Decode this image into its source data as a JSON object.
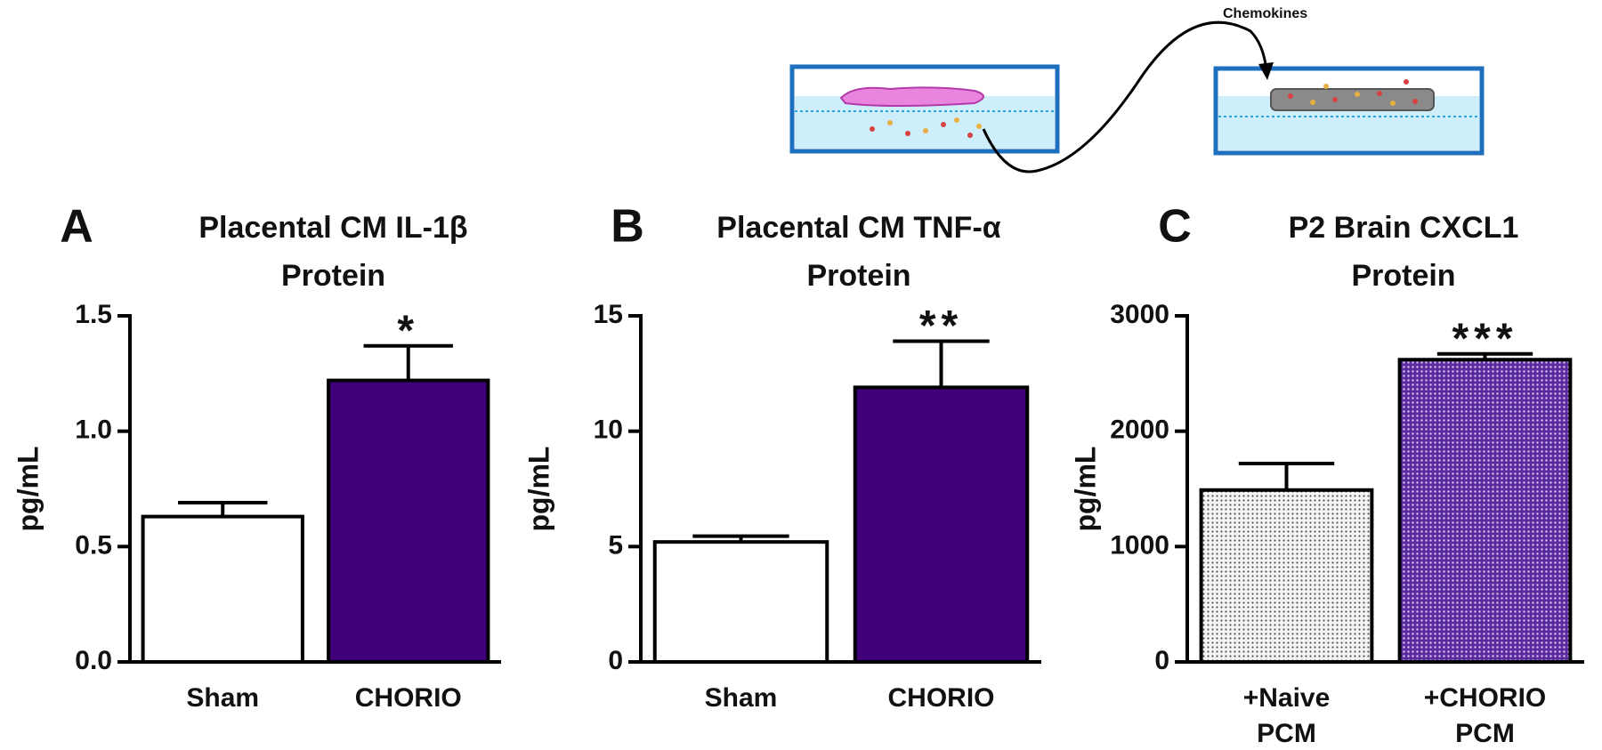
{
  "diagram": {
    "label": "Chemokines"
  },
  "chart_data": [
    {
      "type": "bar",
      "panel": "A",
      "title": [
        "Placental CM IL-1β",
        "Protein"
      ],
      "ylabel": "pg/mL",
      "categories": [
        [
          "Sham"
        ],
        [
          "CHORIO"
        ]
      ],
      "values": [
        0.63,
        1.22
      ],
      "errors": [
        0.06,
        0.15
      ],
      "colors": [
        "#ffffff",
        "#3f0079"
      ],
      "annotations": [
        null,
        "*"
      ],
      "ylim": [
        0,
        1.5
      ],
      "yticks": [
        {
          "value": 0,
          "label": "0.0"
        },
        0.5,
        {
          "value": 1,
          "label": "1.0"
        },
        1.5
      ]
    },
    {
      "type": "bar",
      "panel": "B",
      "title": [
        "Placental CM TNF-α",
        "Protein"
      ],
      "ylabel": "pg/mL",
      "categories": [
        [
          "Sham"
        ],
        [
          "CHORIO"
        ]
      ],
      "values": [
        5.2,
        11.9
      ],
      "errors": [
        0.25,
        2.0
      ],
      "colors": [
        "#ffffff",
        "#3f0079"
      ],
      "annotations": [
        null,
        "**"
      ],
      "ylim": [
        0,
        15
      ],
      "yticks": [
        0,
        5,
        10,
        15
      ]
    },
    {
      "type": "bar",
      "panel": "C",
      "title": [
        "P2 Brain CXCL1",
        "Protein"
      ],
      "ylabel": "pg/mL",
      "categories": [
        [
          "+Naive",
          "PCM"
        ],
        [
          "+CHORIO",
          "PCM"
        ]
      ],
      "values": [
        1490,
        2620
      ],
      "errors": [
        230,
        50
      ],
      "colors": [
        "#dddddd",
        "#6a3da8"
      ],
      "patterned": true,
      "annotations": [
        null,
        "***"
      ],
      "ylim": [
        0,
        3000
      ],
      "yticks": [
        0,
        1000,
        2000,
        3000
      ]
    }
  ]
}
